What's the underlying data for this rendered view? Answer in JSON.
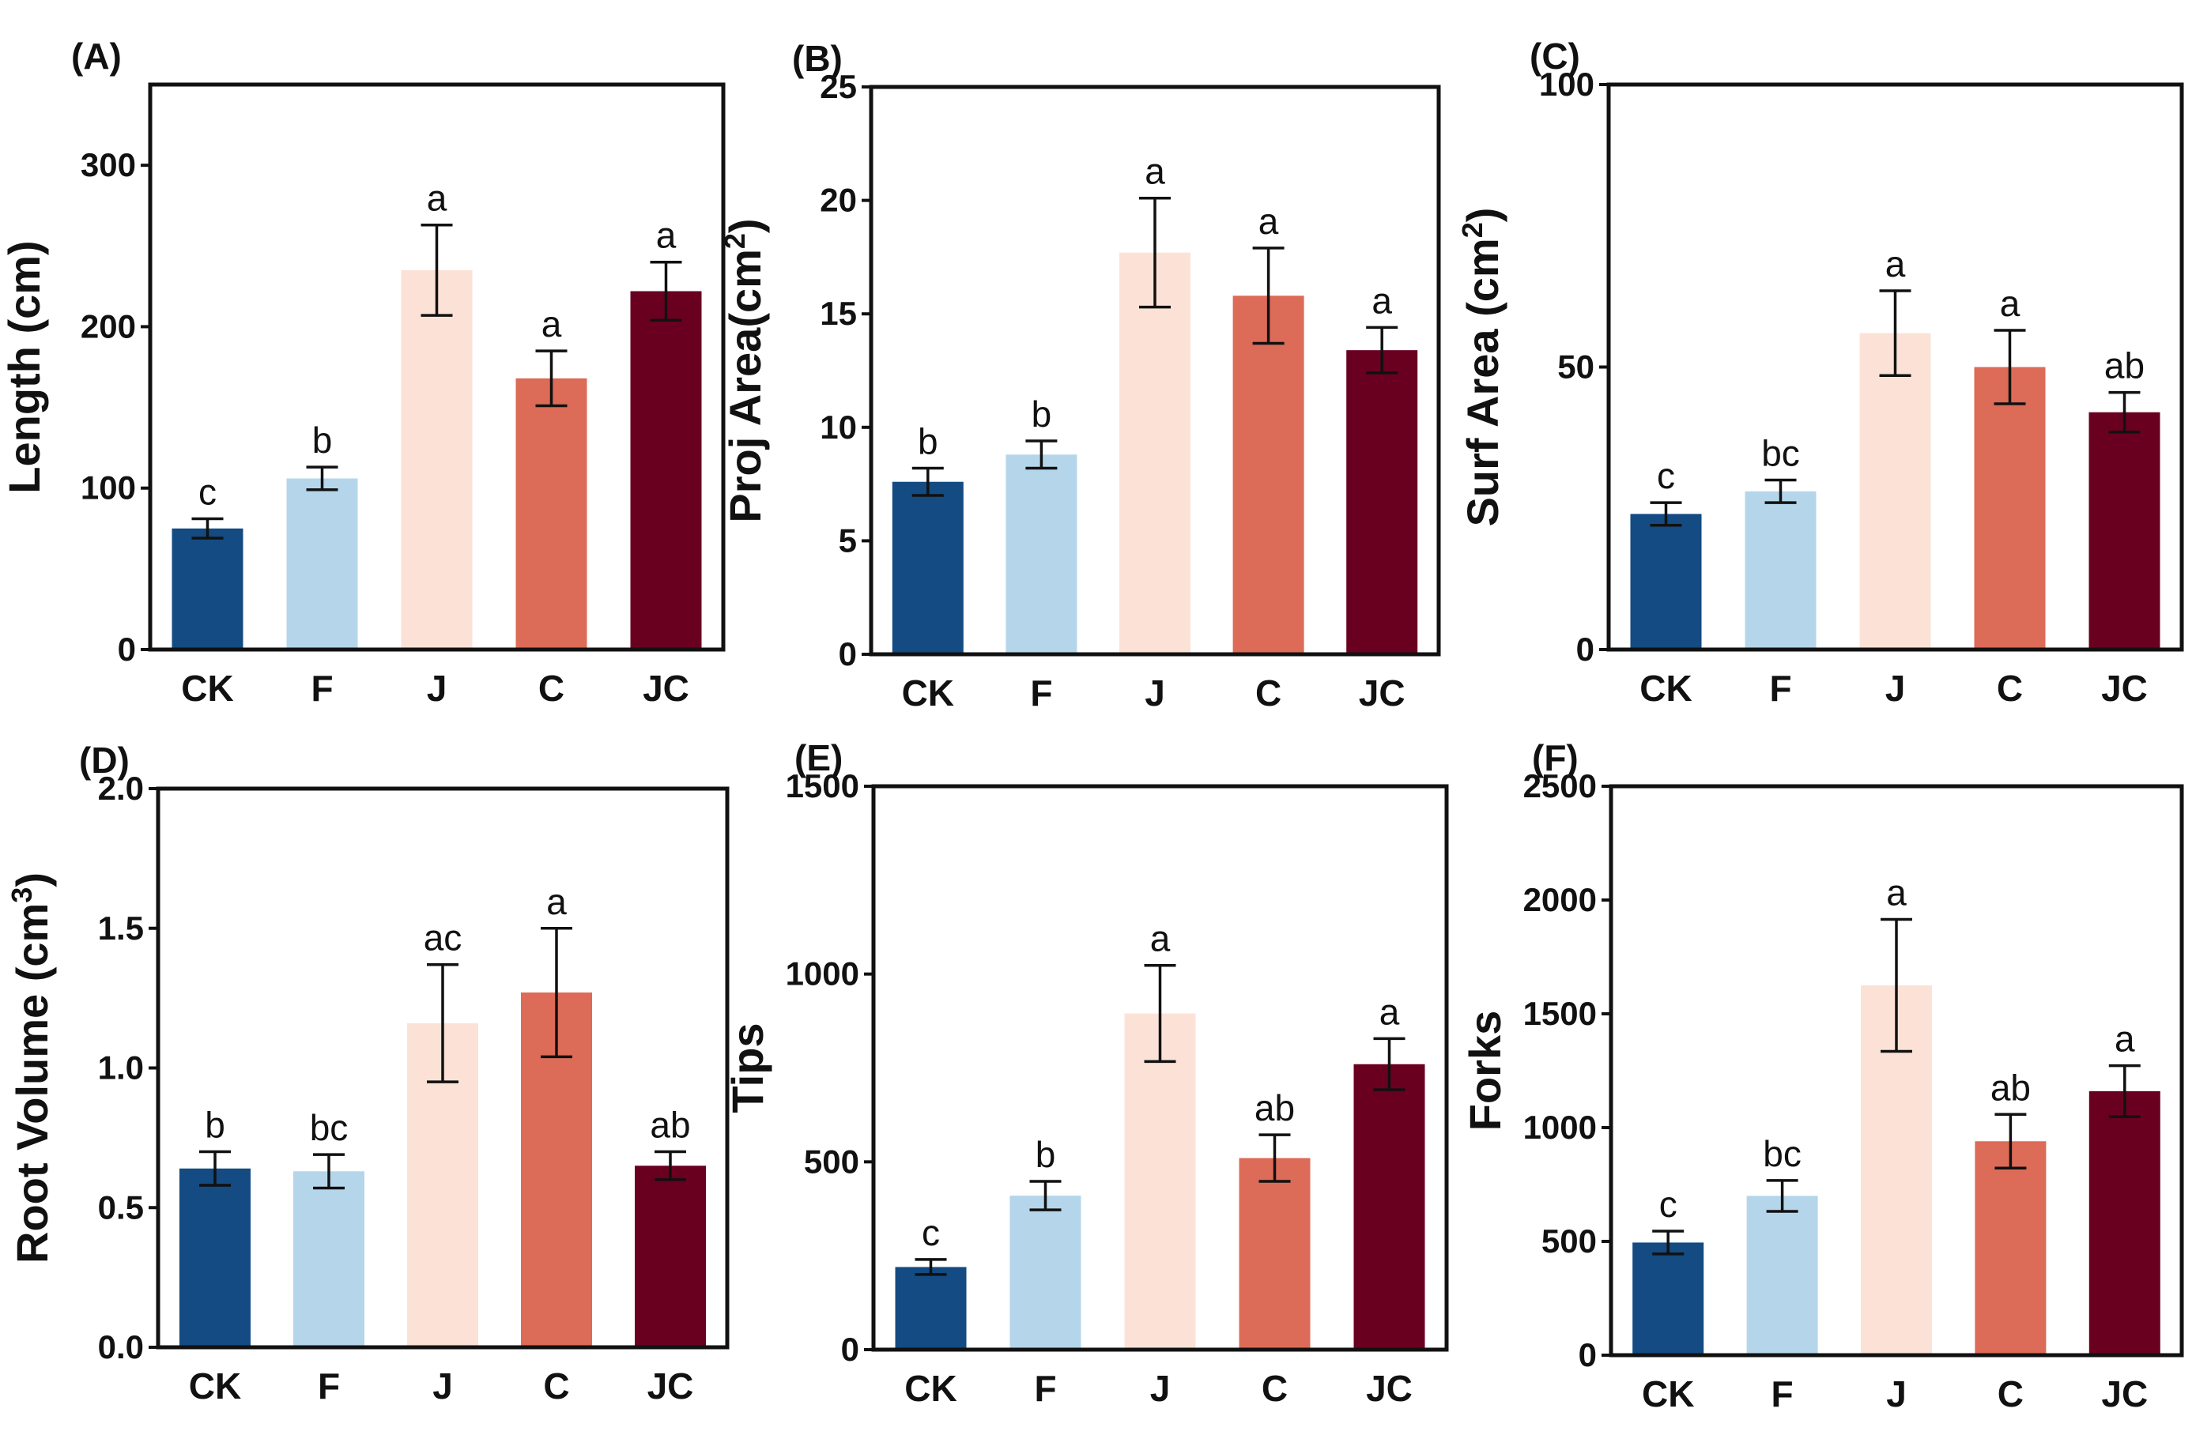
{
  "palette": {
    "CK": "#134b82",
    "F": "#b5d6ea",
    "J": "#fce2d6",
    "C": "#dc6b57",
    "JC": "#6a0020"
  },
  "chart_data": [
    {
      "id": "A",
      "type": "bar",
      "panel_label": "(A)",
      "ylabel_main": "Length (cm)",
      "ylabel_sup": "",
      "ylabel_tail": "",
      "categories": [
        "CK",
        "F",
        "J",
        "C",
        "JC"
      ],
      "values": [
        75,
        106,
        235,
        168,
        222
      ],
      "errors": [
        6,
        7,
        28,
        17,
        18
      ],
      "significance": [
        "c",
        "b",
        "a",
        "a",
        "a"
      ],
      "yticks": [
        0,
        100,
        200,
        300
      ],
      "ytick_labels": [
        "0",
        "100",
        "200",
        "300"
      ],
      "ylim": [
        0,
        350
      ]
    },
    {
      "id": "B",
      "type": "bar",
      "panel_label": "(B)",
      "ylabel_main": "Proj Area(cm",
      "ylabel_sup": "2",
      "ylabel_tail": ")",
      "categories": [
        "CK",
        "F",
        "J",
        "C",
        "JC"
      ],
      "values": [
        7.6,
        8.8,
        17.7,
        15.8,
        13.4
      ],
      "errors": [
        0.6,
        0.6,
        2.4,
        2.1,
        1.0
      ],
      "significance": [
        "b",
        "b",
        "a",
        "a",
        "a"
      ],
      "yticks": [
        0,
        5,
        10,
        15,
        20,
        25
      ],
      "ytick_labels": [
        "0",
        "5",
        "10",
        "15",
        "20",
        "25"
      ],
      "ylim": [
        0,
        25
      ]
    },
    {
      "id": "C",
      "type": "bar",
      "panel_label": "(C)",
      "ylabel_main": "Surf Area (cm",
      "ylabel_sup": "2",
      "ylabel_tail": ")",
      "categories": [
        "CK",
        "F",
        "J",
        "C",
        "JC"
      ],
      "values": [
        24,
        28,
        56,
        50,
        42
      ],
      "errors": [
        2,
        2,
        7.5,
        6.5,
        3.5
      ],
      "significance": [
        "c",
        "bc",
        "a",
        "a",
        "ab"
      ],
      "yticks": [
        0,
        50,
        100
      ],
      "ytick_labels": [
        "0",
        "50",
        "100"
      ],
      "ylim": [
        0,
        100
      ]
    },
    {
      "id": "D",
      "type": "bar",
      "panel_label": "(D)",
      "ylabel_main": "Root Volume (cm",
      "ylabel_sup": "3",
      "ylabel_tail": ")",
      "categories": [
        "CK",
        "F",
        "J",
        "C",
        "JC"
      ],
      "values": [
        0.64,
        0.63,
        1.16,
        1.27,
        0.65
      ],
      "errors": [
        0.06,
        0.06,
        0.21,
        0.23,
        0.05
      ],
      "significance": [
        "b",
        "bc",
        "ac",
        "a",
        "ab"
      ],
      "yticks": [
        0,
        0.5,
        1.0,
        1.5,
        2.0
      ],
      "ytick_labels": [
        "0.0",
        "0.5",
        "1.0",
        "1.5",
        "2.0"
      ],
      "ylim": [
        0,
        2.0
      ]
    },
    {
      "id": "E",
      "type": "bar",
      "panel_label": "(E)",
      "ylabel_main": "Tips",
      "ylabel_sup": "",
      "ylabel_tail": "",
      "categories": [
        "CK",
        "F",
        "J",
        "C",
        "JC"
      ],
      "values": [
        220,
        410,
        895,
        510,
        760
      ],
      "errors": [
        20,
        38,
        128,
        62,
        68
      ],
      "significance": [
        "c",
        "b",
        "a",
        "ab",
        "a"
      ],
      "yticks": [
        0,
        500,
        1000,
        1500
      ],
      "ytick_labels": [
        "0",
        "500",
        "1000",
        "1500"
      ],
      "ylim": [
        0,
        1500
      ]
    },
    {
      "id": "F",
      "type": "bar",
      "panel_label": "(F)",
      "ylabel_main": "Forks",
      "ylabel_sup": "",
      "ylabel_tail": "",
      "categories": [
        "CK",
        "F",
        "J",
        "C",
        "JC"
      ],
      "values": [
        495,
        700,
        1625,
        940,
        1160
      ],
      "errors": [
        50,
        68,
        290,
        118,
        112
      ],
      "significance": [
        "c",
        "bc",
        "a",
        "ab",
        "a"
      ],
      "yticks": [
        0,
        500,
        1000,
        1500,
        2000,
        2500
      ],
      "ytick_labels": [
        "0",
        "500",
        "1000",
        "1500",
        "2000",
        "2500"
      ],
      "ylim": [
        0,
        2500
      ]
    }
  ]
}
